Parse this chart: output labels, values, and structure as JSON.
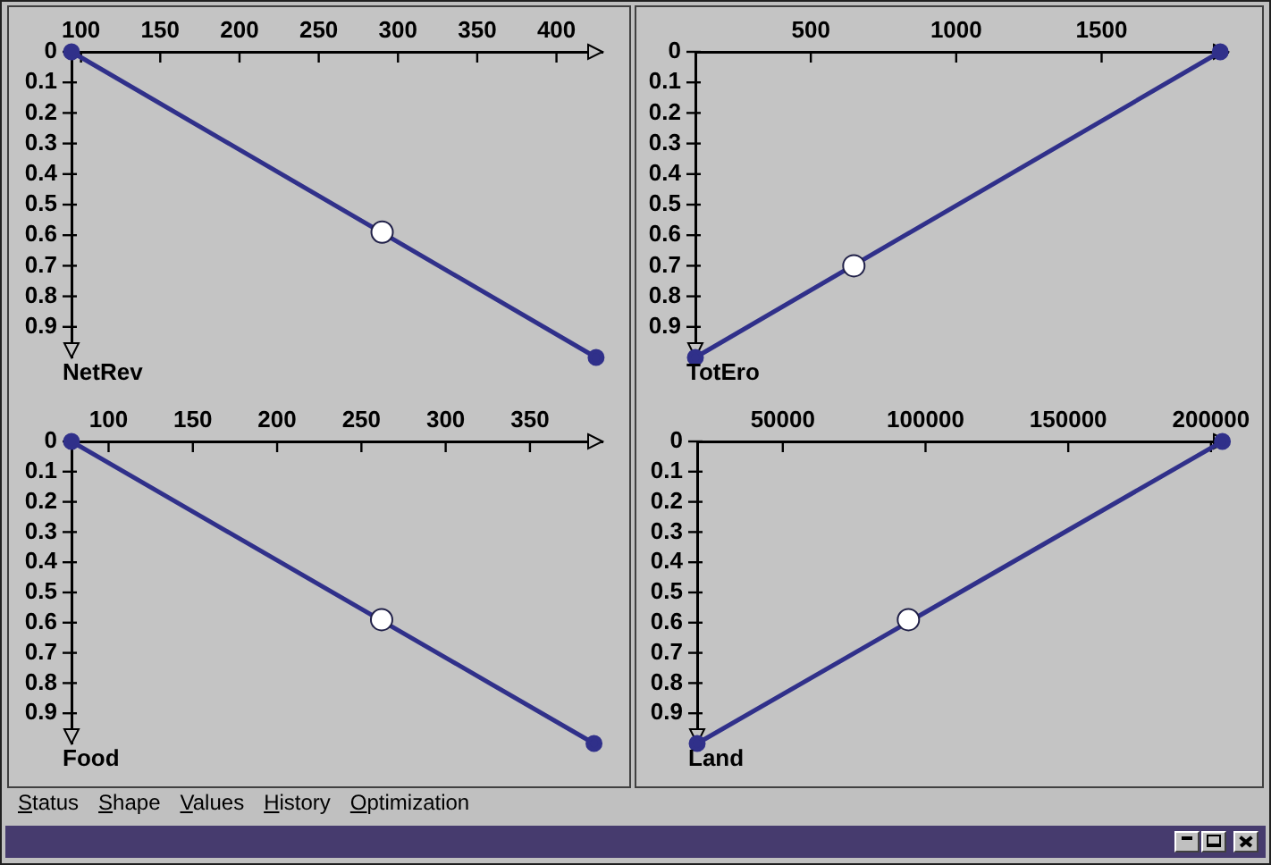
{
  "chart_data": [
    {
      "type": "line",
      "title": "NetRev",
      "marker": "circle",
      "series": [
        {
          "color": "#30308a",
          "x": [
            94,
            425
          ],
          "values": [
            0,
            1
          ]
        },
        {
          "type": "scatter",
          "color": "#ffffff",
          "x": [
            290
          ],
          "values": [
            0.59
          ]
        }
      ],
      "xlim": [
        94,
        429
      ],
      "xticks": [
        100,
        150,
        200,
        250,
        300,
        350,
        400
      ],
      "ylim": [
        1,
        0
      ],
      "yticks": [
        0,
        0.1,
        0.2,
        0.3,
        0.4,
        0.5,
        0.6,
        0.7,
        0.8,
        0.9
      ]
    },
    {
      "type": "line",
      "title": "TotEro",
      "marker": "circle",
      "series": [
        {
          "color": "#30308a",
          "x": [
            103,
            1908
          ],
          "values": [
            1,
            0
          ]
        },
        {
          "type": "scatter",
          "color": "#ffffff",
          "x": [
            648
          ],
          "values": [
            0.7
          ]
        }
      ],
      "xlim": [
        103,
        1935
      ],
      "xticks": [
        500,
        1000,
        1500
      ],
      "ylim": [
        1,
        0
      ],
      "yticks": [
        0,
        0.1,
        0.2,
        0.3,
        0.4,
        0.5,
        0.6,
        0.7,
        0.8,
        0.9
      ]
    },
    {
      "type": "line",
      "title": "Food",
      "marker": "circle",
      "series": [
        {
          "color": "#30308a",
          "x": [
            78,
            388
          ],
          "values": [
            0,
            1
          ]
        },
        {
          "type": "scatter",
          "color": "#ffffff",
          "x": [
            262
          ],
          "values": [
            0.59
          ]
        }
      ],
      "xlim": [
        78,
        393
      ],
      "xticks": [
        100,
        150,
        200,
        250,
        300,
        350
      ],
      "ylim": [
        1,
        0
      ],
      "yticks": [
        0,
        0.1,
        0.2,
        0.3,
        0.4,
        0.5,
        0.6,
        0.7,
        0.8,
        0.9
      ]
    },
    {
      "type": "line",
      "title": "Land",
      "marker": "circle",
      "series": [
        {
          "color": "#30308a",
          "x": [
            20000,
            204000
          ],
          "values": [
            1,
            0
          ]
        },
        {
          "type": "scatter",
          "color": "#ffffff",
          "x": [
            94000
          ],
          "values": [
            0.59
          ]
        }
      ],
      "xlim": [
        20000,
        206000
      ],
      "xticks": [
        50000,
        100000,
        150000,
        200000
      ],
      "ylim": [
        1,
        0
      ],
      "yticks": [
        0,
        0.1,
        0.2,
        0.3,
        0.4,
        0.5,
        0.6,
        0.7,
        0.8,
        0.9
      ]
    },
    {
      "type": "other",
      "annotations": [
        "Status",
        "Shape",
        "Values",
        "History",
        "Optimization"
      ]
    }
  ]
}
